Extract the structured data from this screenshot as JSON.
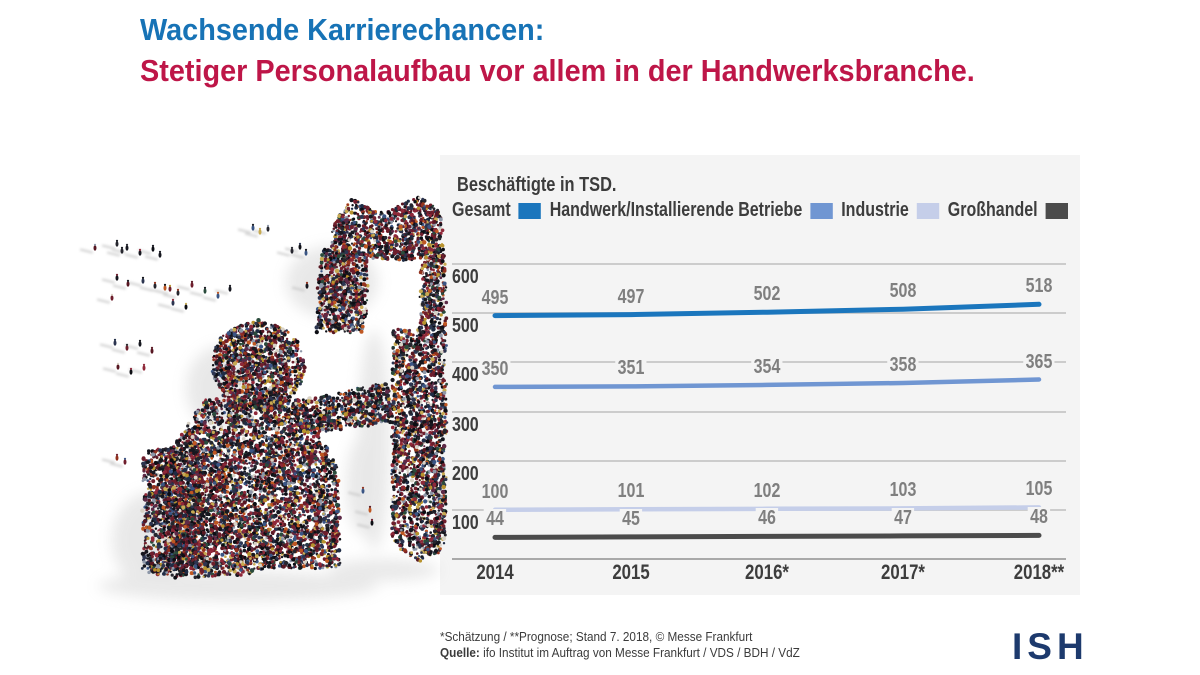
{
  "header": {
    "line1": "Wachsende Karrierechancen:",
    "line2": "Stetiger Personalaufbau vor allem in der Handwerksbranche.",
    "line1_color": "#1773b6",
    "line2_color": "#be1648"
  },
  "chart_data": {
    "type": "line",
    "title": "Beschäftigte in TSD.",
    "categories": [
      "2014",
      "2015",
      "2016*",
      "2017*",
      "2018**"
    ],
    "series": [
      {
        "name": "Gesamt",
        "color": "#1b76bd",
        "values": [
          495,
          497,
          502,
          508,
          518
        ]
      },
      {
        "name": "Handwerk/Installierende Betriebe",
        "color": "#7096d2",
        "values": [
          350,
          351,
          354,
          358,
          365
        ]
      },
      {
        "name": "Industrie",
        "color": "#c5cee9",
        "values": [
          100,
          101,
          102,
          103,
          105
        ]
      },
      {
        "name": "Großhandel",
        "color": "#4b4b4b",
        "values": [
          44,
          45,
          46,
          47,
          48
        ]
      }
    ],
    "ylim": [
      0,
      600
    ],
    "yticks": [
      600,
      500,
      400,
      300,
      200,
      100
    ],
    "grid": true,
    "legend_position": "top",
    "panel_bg": "#f4f4f4"
  },
  "footer": {
    "note": "*Schätzung / **Prognose; Stand 7. 2018, © Messe Frankfurt",
    "source_label": "Quelle:",
    "source_text": "ifo Institut im Auftrag von Messe Frankfurt / VDS / BDH / VdZ"
  },
  "logo": {
    "text": "ISH",
    "color": "#1d3a6d"
  },
  "illustration": {
    "name": "crowd-of-people-forming-figure-with-wrench"
  }
}
